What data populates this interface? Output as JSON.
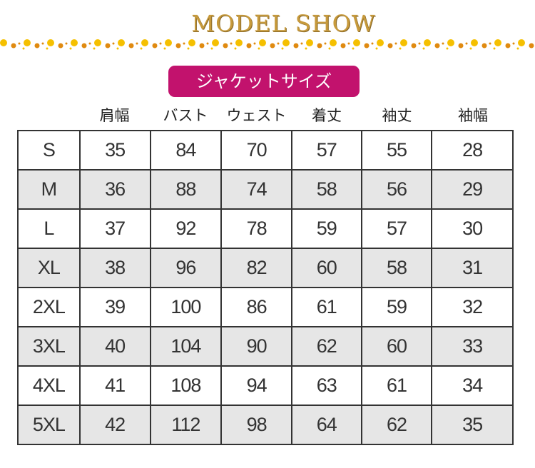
{
  "title": "MODEL SHOW",
  "badge": "ジャケットサイズ",
  "colors": {
    "badge": "#c2126d",
    "title": "#c79a3c",
    "dots": [
      "#f5c000",
      "#e08a10"
    ]
  },
  "columns": [
    "肩幅",
    "バスト",
    "ウェスト",
    "着丈",
    "袖丈",
    "袖幅"
  ],
  "rows": [
    {
      "size": "S",
      "values": [
        "35",
        "84",
        "70",
        "57",
        "55",
        "28"
      ]
    },
    {
      "size": "M",
      "values": [
        "36",
        "88",
        "74",
        "58",
        "56",
        "29"
      ]
    },
    {
      "size": "L",
      "values": [
        "37",
        "92",
        "78",
        "59",
        "57",
        "30"
      ]
    },
    {
      "size": "XL",
      "values": [
        "38",
        "96",
        "82",
        "60",
        "58",
        "31"
      ]
    },
    {
      "size": "2XL",
      "values": [
        "39",
        "100",
        "86",
        "61",
        "59",
        "32"
      ]
    },
    {
      "size": "3XL",
      "values": [
        "40",
        "104",
        "90",
        "62",
        "60",
        "33"
      ]
    },
    {
      "size": "4XL",
      "values": [
        "41",
        "108",
        "94",
        "63",
        "61",
        "34"
      ]
    },
    {
      "size": "5XL",
      "values": [
        "42",
        "112",
        "98",
        "64",
        "62",
        "35"
      ]
    }
  ]
}
